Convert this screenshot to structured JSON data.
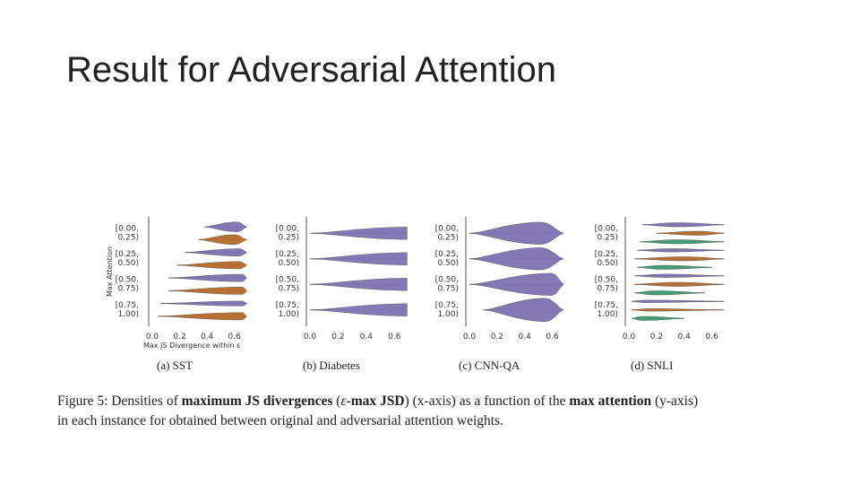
{
  "slide": {
    "title": "Result for Adversarial Attention"
  },
  "figure": {
    "subcaptions": [
      "(a) SST",
      "(b) Diabetes",
      "(c) CNN-QA",
      "(d) SNLI"
    ],
    "caption": {
      "fig_label": "Figure 5:",
      "t1": " Densities of ",
      "b1": "maximum JS divergences",
      "t2": " (",
      "eps": "ε",
      "b2": "-max JSD",
      "t3": ") (x-axis) as a function of the ",
      "b3": "max attention",
      "t4": " (y-axis)",
      "line2": "in each instance for obtained between original and adversarial attention weights."
    }
  },
  "colors": {
    "purple": "#7d72b0",
    "orange": "#b56a2a",
    "green": "#3e9b6e",
    "axis": "#555555"
  },
  "chart_data": [
    {
      "type": "violin",
      "name": "(a) SST",
      "ylabel": "Max Attention",
      "xlabel": "Max JS Divergence within ε",
      "xticks": [
        "0.0",
        "0.2",
        "0.4",
        "0.6"
      ],
      "xlim": [
        0.0,
        0.7
      ],
      "yticks": [
        "[0.00, 0.25)",
        "[0.25, 0.50)",
        "[0.50, 0.75)",
        "[0.75, 1.00)"
      ],
      "violins": [
        {
          "group": 0,
          "color": "purple",
          "min": 0.38,
          "max": 0.69,
          "mode": 0.62,
          "width": 0.8
        },
        {
          "group": 0,
          "color": "orange",
          "min": 0.34,
          "max": 0.69,
          "mode": 0.6,
          "width": 0.8
        },
        {
          "group": 1,
          "color": "purple",
          "min": 0.24,
          "max": 0.69,
          "mode": 0.64,
          "width": 0.6
        },
        {
          "group": 1,
          "color": "orange",
          "min": 0.18,
          "max": 0.69,
          "mode": 0.64,
          "width": 0.6
        },
        {
          "group": 2,
          "color": "purple",
          "min": 0.12,
          "max": 0.69,
          "mode": 0.66,
          "width": 0.6
        },
        {
          "group": 2,
          "color": "orange",
          "min": 0.12,
          "max": 0.69,
          "mode": 0.66,
          "width": 0.6
        },
        {
          "group": 3,
          "color": "purple",
          "min": 0.06,
          "max": 0.69,
          "mode": 0.66,
          "width": 0.4
        },
        {
          "group": 3,
          "color": "orange",
          "min": 0.04,
          "max": 0.69,
          "mode": 0.66,
          "width": 0.6
        }
      ]
    },
    {
      "type": "violin",
      "name": "(b) Diabetes",
      "xticks": [
        "0.0",
        "0.2",
        "0.4",
        "0.6"
      ],
      "xlim": [
        0.0,
        0.7
      ],
      "yticks": [
        "[0.00, 0.25)",
        "[0.25, 0.50)",
        "[0.50, 0.75)",
        "[0.75, 1.00)"
      ],
      "violins": [
        {
          "group": 0,
          "color": "purple",
          "min": 0.0,
          "max": 0.69,
          "mode": 0.69,
          "width": 0.5
        },
        {
          "group": 1,
          "color": "purple",
          "min": 0.0,
          "max": 0.69,
          "mode": 0.69,
          "width": 0.5
        },
        {
          "group": 2,
          "color": "purple",
          "min": 0.0,
          "max": 0.69,
          "mode": 0.69,
          "width": 0.5
        },
        {
          "group": 3,
          "color": "purple",
          "min": 0.0,
          "max": 0.69,
          "mode": 0.69,
          "width": 0.5
        }
      ]
    },
    {
      "type": "violin",
      "name": "(c) CNN-QA",
      "xticks": [
        "0.0",
        "0.2",
        "0.4",
        "0.6"
      ],
      "xlim": [
        0.0,
        0.7
      ],
      "yticks": [
        "[0.00, 0.25)",
        "[0.25, 0.50)",
        "[0.50, 0.75)",
        "[0.75, 1.00)"
      ],
      "violins": [
        {
          "group": 0,
          "color": "purple",
          "min": 0.0,
          "max": 0.68,
          "mode": 0.52,
          "width": 0.9
        },
        {
          "group": 1,
          "color": "purple",
          "min": 0.0,
          "max": 0.68,
          "mode": 0.52,
          "width": 0.9
        },
        {
          "group": 2,
          "color": "purple",
          "min": 0.0,
          "max": 0.68,
          "mode": 0.6,
          "width": 0.9
        },
        {
          "group": 3,
          "color": "purple",
          "min": 0.1,
          "max": 0.68,
          "mode": 0.55,
          "width": 0.95
        }
      ]
    },
    {
      "type": "violin",
      "name": "(d) SNLI",
      "xticks": [
        "0.0",
        "0.2",
        "0.4",
        "0.6"
      ],
      "xlim": [
        0.0,
        0.7
      ],
      "yticks": [
        "[0.00, 0.25)",
        "[0.25, 0.50)",
        "[0.50, 0.75)",
        "[0.75, 1.00)"
      ],
      "violins": [
        {
          "group": 0,
          "color": "purple",
          "min": 0.1,
          "max": 0.69,
          "mode": 0.35,
          "width": 0.5
        },
        {
          "group": 0,
          "color": "orange",
          "min": 0.2,
          "max": 0.69,
          "mode": 0.5,
          "width": 0.5
        },
        {
          "group": 0,
          "color": "green",
          "min": 0.08,
          "max": 0.69,
          "mode": 0.35,
          "width": 0.5
        },
        {
          "group": 1,
          "color": "purple",
          "min": 0.06,
          "max": 0.69,
          "mode": 0.3,
          "width": 0.4
        },
        {
          "group": 1,
          "color": "orange",
          "min": 0.04,
          "max": 0.69,
          "mode": 0.4,
          "width": 0.5
        },
        {
          "group": 1,
          "color": "green",
          "min": 0.06,
          "max": 0.6,
          "mode": 0.25,
          "width": 0.5
        },
        {
          "group": 2,
          "color": "purple",
          "min": 0.04,
          "max": 0.69,
          "mode": 0.25,
          "width": 0.4
        },
        {
          "group": 2,
          "color": "orange",
          "min": 0.04,
          "max": 0.69,
          "mode": 0.35,
          "width": 0.5
        },
        {
          "group": 2,
          "color": "green",
          "min": 0.04,
          "max": 0.55,
          "mode": 0.18,
          "width": 0.5
        },
        {
          "group": 3,
          "color": "purple",
          "min": 0.02,
          "max": 0.69,
          "mode": 0.12,
          "width": 0.3
        },
        {
          "group": 3,
          "color": "orange",
          "min": 0.02,
          "max": 0.69,
          "mode": 0.15,
          "width": 0.3
        },
        {
          "group": 3,
          "color": "green",
          "min": 0.02,
          "max": 0.4,
          "mode": 0.1,
          "width": 0.5
        }
      ]
    }
  ]
}
